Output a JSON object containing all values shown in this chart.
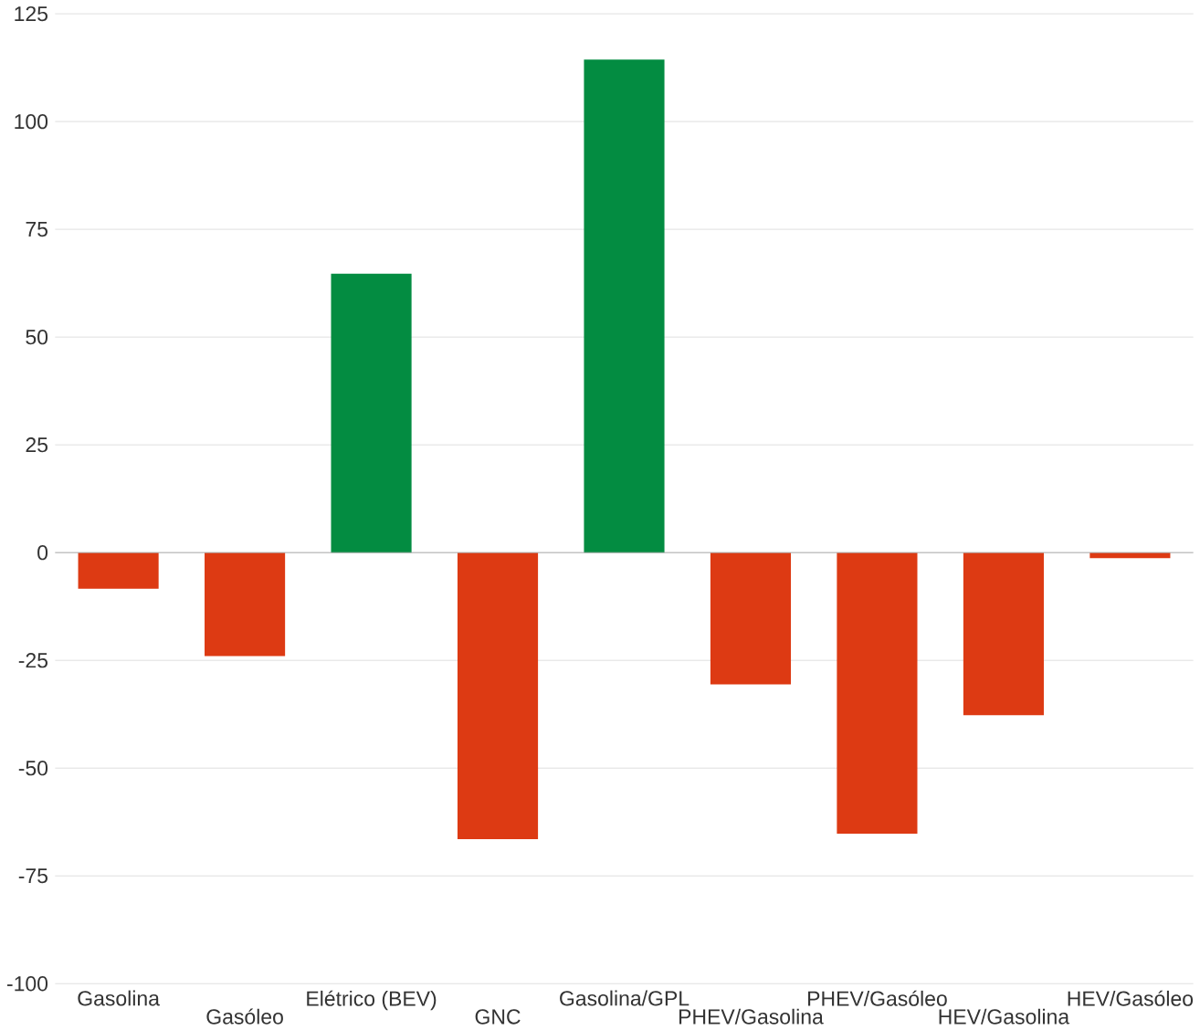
{
  "chart_data": {
    "type": "bar",
    "categories": [
      "Gasolina",
      "Gasóleo",
      "Elétrico (BEV)",
      "GNC",
      "Gasolina/GPL",
      "PHEV/Gasolina",
      "PHEV/Gasóleo",
      "HEV/Gasolina",
      "HEV/Gasóleo"
    ],
    "values": [
      -8.4,
      -24,
      64.7,
      -66.5,
      114.4,
      -30.6,
      -65.2,
      -37.7,
      -1.3
    ],
    "colors": [
      "#dd3a13",
      "#dd3a13",
      "#038c41",
      "#dd3a13",
      "#038c41",
      "#dd3a13",
      "#dd3a13",
      "#dd3a13",
      "#dd3a13"
    ],
    "ylim": [
      -100,
      125
    ],
    "yticks": [
      -100,
      -75,
      -50,
      -25,
      0,
      25,
      50,
      75,
      100,
      125
    ],
    "grid": "y"
  }
}
